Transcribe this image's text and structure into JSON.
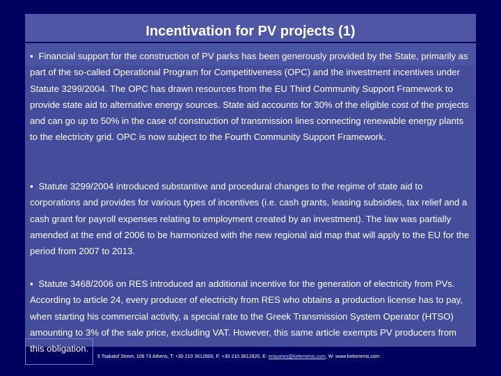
{
  "slide": {
    "title": "Incentivation for PV projects (1)",
    "bullet_glyph": "▪",
    "paragraphs": [
      "Financial support for the construction of PV parks has been generously provided by the State, primarily as part of the so-called Operational Program for Competitiveness (OPC) and the investment incentives under Statute 3299/2004. The OPC has drawn resources from the EU Third Community Support Framework to provide state aid to alternative energy sources. State aid accounts for 30% of the eligible cost of the projects and can go up to 50% in the case of construction of transmission lines connecting renewable energy plants to the electricity grid. OPC is now subject to the Fourth Community Support Framework.",
      "Statute 3299/2004 introduced substantive and procedural changes to the regime of state aid to corporations and provides for various types of incentives (i.e. cash grants, leasing subsidies, tax relief and a cash grant for payroll expenses relating to employment created by an investment). The law was partially amended at the end of 2006 to be harmonized with the new regional aid map that will apply to the EU for the period from 2007 to 2013.",
      "Statute 3468/2006 on RES introduced an additional incentive for the generation of electricity from PVs. According to article 24, every producer of electricity from RES who obtains a production license has to pay, when starting his commercial activity, a special rate to the Greek Transmission System Operator (HTSO) amounting to 3% of the sale price, excluding VAT. However, this same article exempts PV producers from this obligation."
    ],
    "footer": {
      "address": "5 Tsakalof Street, 106 73 Athens, T: +30 210 3612800, F: +30 210 3612820, E: ",
      "email": "enquiries@kelemenis.com",
      "website": ", W: www.kelemenis.com"
    }
  }
}
